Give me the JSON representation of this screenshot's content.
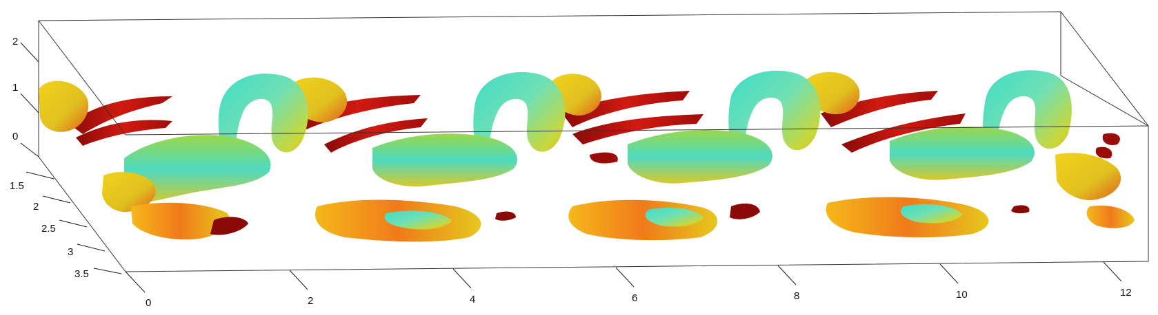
{
  "figure": {
    "kind": "3d-isosurface-render",
    "colormap": [
      "#c41a0e",
      "#e8641a",
      "#f2c21a",
      "#d9d92a",
      "#8fd86a",
      "#3fdcc8"
    ],
    "axes": {
      "x_ticks": [
        "0",
        "2",
        "4",
        "6",
        "8",
        "10",
        "12"
      ],
      "y_ticks": [
        "1.5",
        "2",
        "2.5",
        "3",
        "3.5"
      ],
      "z_ticks": [
        "0",
        "1",
        "2"
      ]
    }
  }
}
